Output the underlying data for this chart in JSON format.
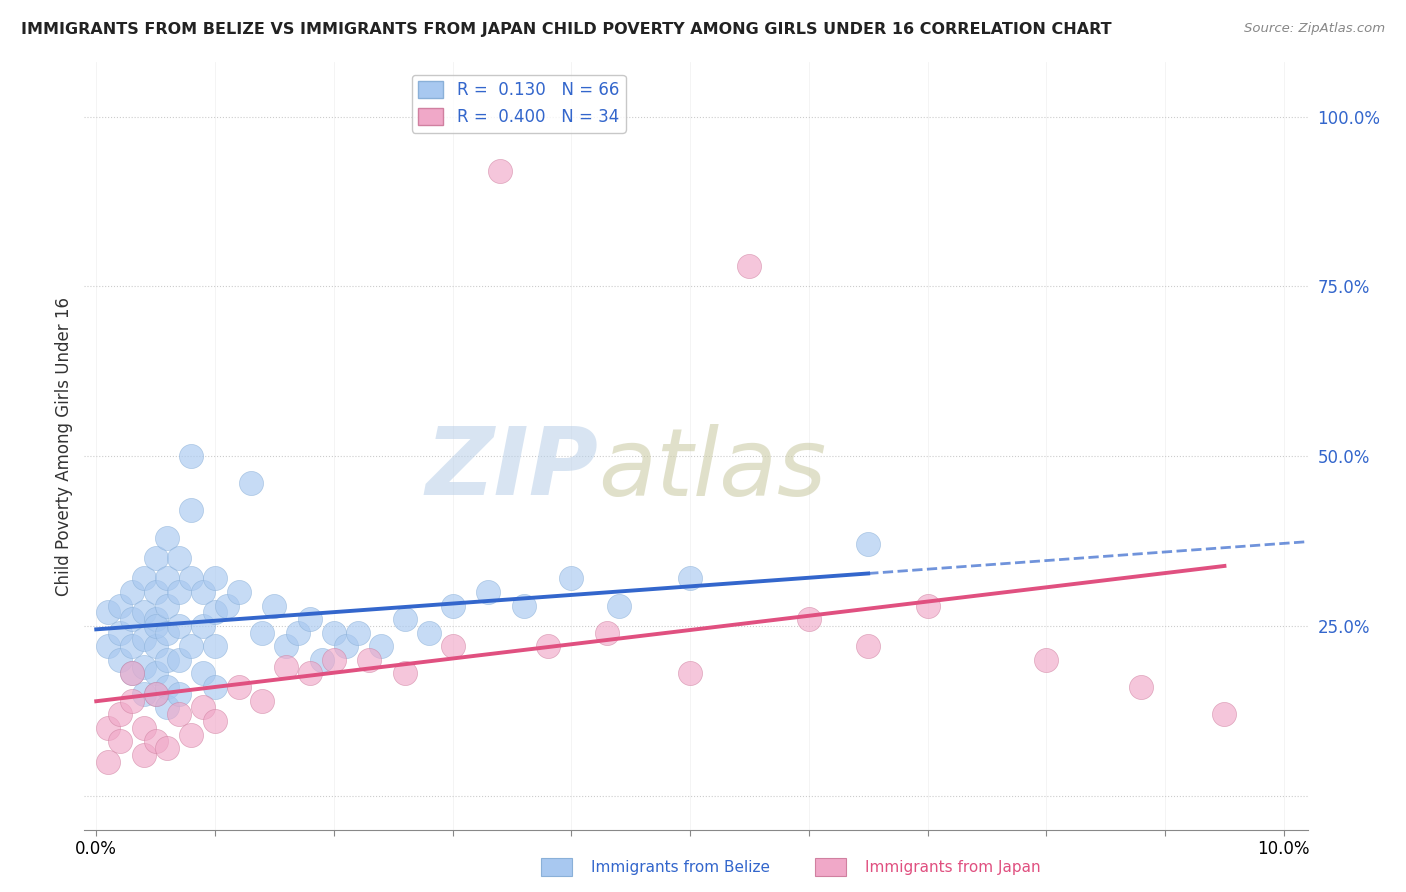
{
  "title": "IMMIGRANTS FROM BELIZE VS IMMIGRANTS FROM JAPAN CHILD POVERTY AMONG GIRLS UNDER 16 CORRELATION CHART",
  "source": "Source: ZipAtlas.com",
  "ylabel": "Child Poverty Among Girls Under 16",
  "xlim": [
    -0.001,
    0.102
  ],
  "ylim": [
    -0.05,
    1.08
  ],
  "r_belize": 0.13,
  "n_belize": 66,
  "r_japan": 0.4,
  "n_japan": 34,
  "color_belize": "#a8c8f0",
  "color_japan": "#f0a8c8",
  "line_color_belize": "#3366cc",
  "line_color_japan": "#e05080",
  "watermark_zip": "ZIP",
  "watermark_atlas": "atlas",
  "watermark_color_zip": "#c8d8e8",
  "watermark_color_atlas": "#c8c8a8",
  "background_color": "#ffffff",
  "grid_color": "#cccccc",
  "belize_x": [
    0.001,
    0.001,
    0.002,
    0.002,
    0.002,
    0.003,
    0.003,
    0.003,
    0.003,
    0.004,
    0.004,
    0.004,
    0.004,
    0.004,
    0.005,
    0.005,
    0.005,
    0.005,
    0.005,
    0.005,
    0.005,
    0.006,
    0.006,
    0.006,
    0.006,
    0.006,
    0.006,
    0.006,
    0.007,
    0.007,
    0.007,
    0.007,
    0.007,
    0.008,
    0.008,
    0.008,
    0.008,
    0.009,
    0.009,
    0.009,
    0.01,
    0.01,
    0.01,
    0.01,
    0.011,
    0.012,
    0.013,
    0.014,
    0.015,
    0.016,
    0.017,
    0.018,
    0.019,
    0.02,
    0.021,
    0.022,
    0.024,
    0.026,
    0.028,
    0.03,
    0.033,
    0.036,
    0.04,
    0.044,
    0.05,
    0.065
  ],
  "belize_y": [
    0.27,
    0.22,
    0.28,
    0.24,
    0.2,
    0.3,
    0.26,
    0.22,
    0.18,
    0.32,
    0.27,
    0.23,
    0.19,
    0.15,
    0.35,
    0.3,
    0.26,
    0.22,
    0.18,
    0.15,
    0.25,
    0.38,
    0.32,
    0.28,
    0.24,
    0.2,
    0.16,
    0.13,
    0.35,
    0.3,
    0.25,
    0.2,
    0.15,
    0.5,
    0.42,
    0.32,
    0.22,
    0.3,
    0.25,
    0.18,
    0.32,
    0.27,
    0.22,
    0.16,
    0.28,
    0.3,
    0.46,
    0.24,
    0.28,
    0.22,
    0.24,
    0.26,
    0.2,
    0.24,
    0.22,
    0.24,
    0.22,
    0.26,
    0.24,
    0.28,
    0.3,
    0.28,
    0.32,
    0.28,
    0.32,
    0.37
  ],
  "japan_x": [
    0.001,
    0.001,
    0.002,
    0.002,
    0.003,
    0.003,
    0.004,
    0.004,
    0.005,
    0.005,
    0.006,
    0.007,
    0.008,
    0.009,
    0.01,
    0.012,
    0.014,
    0.016,
    0.018,
    0.02,
    0.023,
    0.026,
    0.03,
    0.034,
    0.038,
    0.043,
    0.05,
    0.055,
    0.06,
    0.065,
    0.07,
    0.08,
    0.088,
    0.095
  ],
  "japan_y": [
    0.05,
    0.1,
    0.12,
    0.08,
    0.14,
    0.18,
    0.06,
    0.1,
    0.08,
    0.15,
    0.07,
    0.12,
    0.09,
    0.13,
    0.11,
    0.16,
    0.14,
    0.19,
    0.18,
    0.2,
    0.2,
    0.18,
    0.22,
    0.92,
    0.22,
    0.24,
    0.18,
    0.78,
    0.26,
    0.22,
    0.28,
    0.2,
    0.16,
    0.12
  ]
}
